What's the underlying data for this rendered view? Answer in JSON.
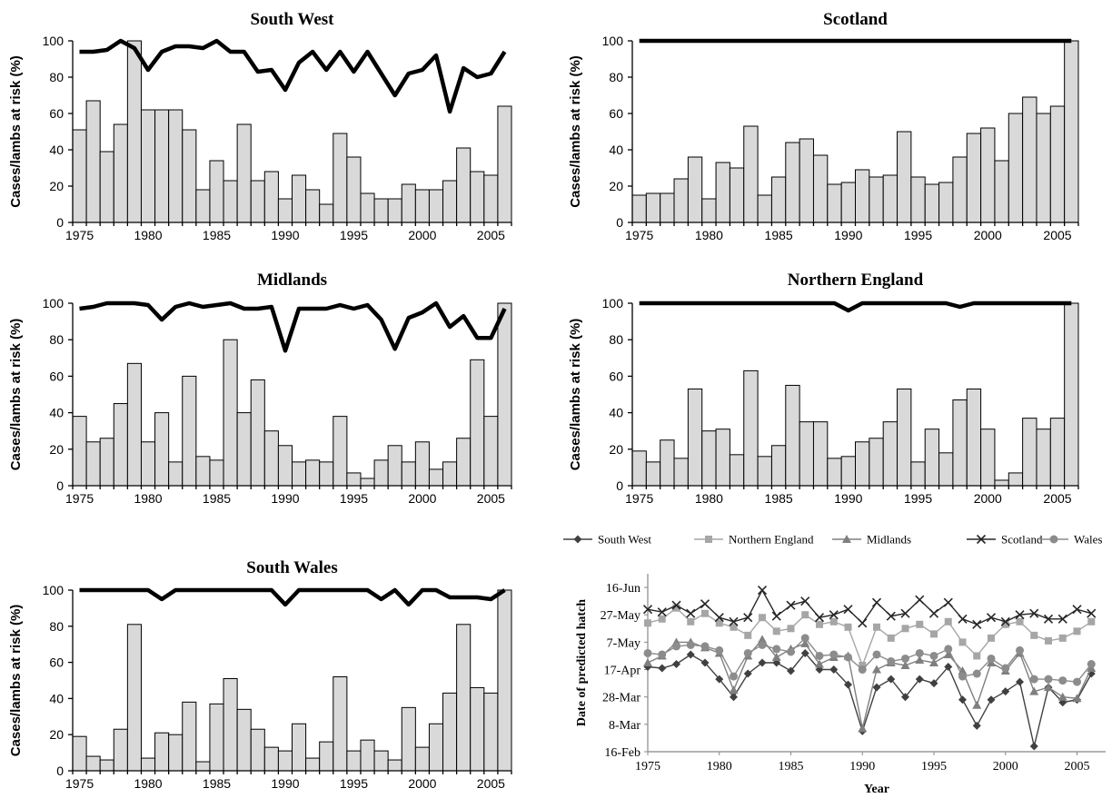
{
  "chart_data": [
    {
      "type": "bar",
      "title": "South West",
      "ylabel": "Cases/lambs at risk (%)",
      "ylim": [
        0,
        100
      ],
      "yticks": [
        0,
        20,
        40,
        60,
        80,
        100
      ],
      "xticks": [
        1975,
        1980,
        1985,
        1990,
        1995,
        2000,
        2005
      ],
      "x": [
        1975,
        1976,
        1977,
        1978,
        1979,
        1980,
        1981,
        1982,
        1983,
        1984,
        1985,
        1986,
        1987,
        1988,
        1989,
        1990,
        1991,
        1992,
        1993,
        1994,
        1995,
        1996,
        1997,
        1998,
        1999,
        2000,
        2001,
        2002,
        2003,
        2004,
        2005,
        2006
      ],
      "series": [
        {
          "kind": "bar",
          "values": [
            51,
            67,
            39,
            54,
            100,
            62,
            62,
            62,
            51,
            18,
            34,
            23,
            54,
            23,
            28,
            13,
            26,
            18,
            10,
            49,
            36,
            16,
            13,
            13,
            21,
            18,
            18,
            23,
            41,
            28,
            26,
            64
          ]
        },
        {
          "kind": "line",
          "values": [
            94,
            94,
            95,
            100,
            96,
            84,
            94,
            97,
            97,
            96,
            100,
            94,
            94,
            83,
            84,
            73,
            88,
            94,
            84,
            94,
            83,
            94,
            82,
            70,
            82,
            84,
            92,
            61,
            85,
            80,
            82,
            94
          ]
        }
      ]
    },
    {
      "type": "bar",
      "title": "Scotland",
      "ylabel": "Cases/lambs at risk (%)",
      "ylim": [
        0,
        100
      ],
      "yticks": [
        0,
        20,
        40,
        60,
        80,
        100
      ],
      "xticks": [
        1975,
        1980,
        1985,
        1990,
        1995,
        2000,
        2005
      ],
      "x": [
        1975,
        1976,
        1977,
        1978,
        1979,
        1980,
        1981,
        1982,
        1983,
        1984,
        1985,
        1986,
        1987,
        1988,
        1989,
        1990,
        1991,
        1992,
        1993,
        1994,
        1995,
        1996,
        1997,
        1998,
        1999,
        2000,
        2001,
        2002,
        2003,
        2004,
        2005,
        2006
      ],
      "series": [
        {
          "kind": "bar",
          "values": [
            15,
            16,
            16,
            24,
            36,
            13,
            33,
            30,
            53,
            15,
            25,
            44,
            46,
            37,
            21,
            22,
            29,
            25,
            26,
            50,
            25,
            21,
            22,
            36,
            49,
            52,
            34,
            60,
            69,
            60,
            64,
            100
          ]
        },
        {
          "kind": "line",
          "values": [
            100,
            100,
            100,
            100,
            100,
            100,
            100,
            100,
            100,
            100,
            100,
            100,
            100,
            100,
            100,
            100,
            100,
            100,
            100,
            100,
            100,
            100,
            100,
            100,
            100,
            100,
            100,
            100,
            100,
            100,
            100,
            100
          ]
        }
      ]
    },
    {
      "type": "bar",
      "title": "Midlands",
      "ylabel": "Cases/lambs at risk (%)",
      "ylim": [
        0,
        100
      ],
      "yticks": [
        0,
        20,
        40,
        60,
        80,
        100
      ],
      "xticks": [
        1975,
        1980,
        1985,
        1990,
        1995,
        2000,
        2005
      ],
      "x": [
        1975,
        1976,
        1977,
        1978,
        1979,
        1980,
        1981,
        1982,
        1983,
        1984,
        1985,
        1986,
        1987,
        1988,
        1989,
        1990,
        1991,
        1992,
        1993,
        1994,
        1995,
        1996,
        1997,
        1998,
        1999,
        2000,
        2001,
        2002,
        2003,
        2004,
        2005,
        2006
      ],
      "series": [
        {
          "kind": "bar",
          "values": [
            38,
            24,
            26,
            45,
            67,
            24,
            40,
            13,
            60,
            16,
            14,
            80,
            40,
            58,
            30,
            22,
            13,
            14,
            13,
            38,
            7,
            4,
            14,
            22,
            13,
            24,
            9,
            13,
            26,
            69,
            38,
            100
          ]
        },
        {
          "kind": "line",
          "values": [
            97,
            98,
            100,
            100,
            100,
            99,
            91,
            98,
            100,
            98,
            99,
            100,
            97,
            97,
            98,
            74,
            97,
            97,
            97,
            99,
            97,
            99,
            91,
            75,
            92,
            95,
            100,
            87,
            93,
            81,
            81,
            97
          ]
        }
      ]
    },
    {
      "type": "bar",
      "title": "Northern England",
      "ylabel": "Cases/lambs at risk (%)",
      "ylim": [
        0,
        100
      ],
      "yticks": [
        0,
        20,
        40,
        60,
        80,
        100
      ],
      "xticks": [
        1975,
        1980,
        1985,
        1990,
        1995,
        2000,
        2005
      ],
      "x": [
        1975,
        1976,
        1977,
        1978,
        1979,
        1980,
        1981,
        1982,
        1983,
        1984,
        1985,
        1986,
        1987,
        1988,
        1989,
        1990,
        1991,
        1992,
        1993,
        1994,
        1995,
        1996,
        1997,
        1998,
        1999,
        2000,
        2001,
        2002,
        2003,
        2004,
        2005,
        2006
      ],
      "series": [
        {
          "kind": "bar",
          "values": [
            19,
            13,
            25,
            15,
            53,
            30,
            31,
            17,
            63,
            16,
            22,
            55,
            35,
            35,
            15,
            16,
            24,
            26,
            35,
            53,
            13,
            31,
            18,
            47,
            53,
            31,
            3,
            7,
            37,
            31,
            37,
            100
          ]
        },
        {
          "kind": "line",
          "values": [
            100,
            100,
            100,
            100,
            100,
            100,
            100,
            100,
            100,
            100,
            100,
            100,
            100,
            100,
            100,
            96,
            100,
            100,
            100,
            100,
            100,
            100,
            100,
            98,
            100,
            100,
            100,
            100,
            100,
            100,
            100,
            100
          ]
        }
      ]
    },
    {
      "type": "bar",
      "title": "South Wales",
      "ylabel": "Cases/lambs at risk (%)",
      "ylim": [
        0,
        100
      ],
      "yticks": [
        0,
        20,
        40,
        60,
        80,
        100
      ],
      "xticks": [
        1975,
        1980,
        1985,
        1990,
        1995,
        2000,
        2005
      ],
      "x": [
        1975,
        1976,
        1977,
        1978,
        1979,
        1980,
        1981,
        1982,
        1983,
        1984,
        1985,
        1986,
        1987,
        1988,
        1989,
        1990,
        1991,
        1992,
        1993,
        1994,
        1995,
        1996,
        1997,
        1998,
        1999,
        2000,
        2001,
        2002,
        2003,
        2004,
        2005,
        2006
      ],
      "series": [
        {
          "kind": "bar",
          "values": [
            19,
            8,
            6,
            23,
            81,
            7,
            21,
            20,
            38,
            5,
            37,
            51,
            34,
            23,
            13,
            11,
            26,
            7,
            16,
            52,
            11,
            17,
            11,
            6,
            35,
            13,
            26,
            43,
            81,
            46,
            43,
            100
          ]
        },
        {
          "kind": "line",
          "values": [
            100,
            100,
            100,
            100,
            100,
            100,
            95,
            100,
            100,
            100,
            100,
            100,
            100,
            100,
            100,
            92,
            100,
            100,
            100,
            100,
            100,
            100,
            95,
            100,
            92,
            100,
            100,
            96,
            96,
            96,
            95,
            100
          ]
        }
      ]
    },
    {
      "type": "line",
      "ylabel": "Date of predicted hatch",
      "xlabel": "Year",
      "xticks": [
        1975,
        1980,
        1985,
        1990,
        1995,
        2000,
        2005
      ],
      "yticks": [
        "16-Feb",
        "8-Mar",
        "28-Mar",
        "17-Apr",
        "7-May",
        "27-May",
        "16-Jun"
      ],
      "ylim": [
        "16-Feb",
        "26-Jun"
      ],
      "legend_position": "top",
      "x": [
        1975,
        1976,
        1977,
        1978,
        1979,
        1980,
        1981,
        1982,
        1983,
        1984,
        1985,
        1986,
        1987,
        1988,
        1989,
        1990,
        1991,
        1992,
        1993,
        1994,
        1995,
        1996,
        1997,
        1998,
        1999,
        2000,
        2001,
        2002,
        2003,
        2004,
        2005,
        2006
      ],
      "series": [
        {
          "name": "South West",
          "marker": "diamond",
          "color": "#404040",
          "values": [
            "19-Apr",
            "18-Apr",
            "21-Apr",
            "28-Apr",
            "22-Apr",
            "10-Apr",
            "28-Mar",
            "14-Apr",
            "22-Apr",
            "22-Apr",
            "16-Apr",
            "29-Apr",
            "17-Apr",
            "17-Apr",
            "6-Apr",
            "3-Mar",
            "4-Apr",
            "10-Apr",
            "28-Mar",
            "10-Apr",
            "7-Apr",
            "19-Apr",
            "26-Mar",
            "7-Mar",
            "26-Mar",
            "1-Apr",
            "8-Apr",
            "20-Feb",
            "4-Apr",
            "24-Mar",
            "26-Mar",
            "14-Apr"
          ]
        },
        {
          "name": "Northern England",
          "marker": "square",
          "color": "#a6a6a6",
          "values": [
            "21-May",
            "24-May",
            "1-Jun",
            "22-May",
            "28-May",
            "21-May",
            "18-May",
            "12-May",
            "25-May",
            "15-May",
            "17-May",
            "27-May",
            "20-May",
            "22-May",
            "18-May",
            "20-Apr",
            "18-May",
            "10-May",
            "17-May",
            "20-May",
            "13-May",
            "22-May",
            "7-May",
            "27-Apr",
            "10-May",
            "20-May",
            "22-May",
            "12-May",
            "8-May",
            "10-May",
            "15-May",
            "22-May"
          ]
        },
        {
          "name": "Midlands",
          "marker": "triangle",
          "color": "#7f7f7f",
          "values": [
            "22-Apr",
            "27-Apr",
            "7-May",
            "7-May",
            "3-May",
            "29-Apr",
            "2-Apr",
            "27-Apr",
            "9-May",
            "26-Apr",
            "2-May",
            "6-May",
            "21-Apr",
            "26-Apr",
            "27-Apr",
            "5-Mar",
            "17-Apr",
            "22-Apr",
            "20-Apr",
            "24-Apr",
            "22-Apr",
            "28-Apr",
            "16-Apr",
            "22-Mar",
            "22-Apr",
            "16-Apr",
            "29-Apr",
            "1-Apr",
            "4-Apr",
            "28-Mar",
            "27-Mar",
            "18-Apr"
          ]
        },
        {
          "name": "Scotland",
          "marker": "x",
          "color": "#262626",
          "values": [
            "31-May",
            "29-May",
            "3-Jun",
            "28-May",
            "4-Jun",
            "25-May",
            "22-May",
            "25-May",
            "14-Jun",
            "26-May",
            "3-Jun",
            "6-Jun",
            "25-May",
            "27-May",
            "31-May",
            "21-May",
            "5-Jun",
            "26-May",
            "28-May",
            "7-Jun",
            "28-May",
            "5-Jun",
            "24-May",
            "20-May",
            "25-May",
            "22-May",
            "27-May",
            "28-May",
            "24-May",
            "24-May",
            "31-May",
            "28-May"
          ]
        },
        {
          "name": "Wales",
          "marker": "circle",
          "color": "#8c8c8c",
          "values": [
            "29-Apr",
            "28-Apr",
            "4-May",
            "5-May",
            "4-May",
            "1-May",
            "12-Apr",
            "29-Apr",
            "5-May",
            "2-May",
            "30-Apr",
            "10-May",
            "27-Apr",
            "28-Apr",
            "26-Apr",
            "17-Apr",
            "28-Apr",
            "23-Apr",
            "25-Apr",
            "29-Apr",
            "27-Apr",
            "2-May",
            "12-Apr",
            "14-Apr",
            "25-Apr",
            "18-Apr",
            "1-May",
            "10-Apr",
            "10-Apr",
            "9-Apr",
            "8-Apr",
            "21-Apr"
          ]
        }
      ]
    }
  ]
}
